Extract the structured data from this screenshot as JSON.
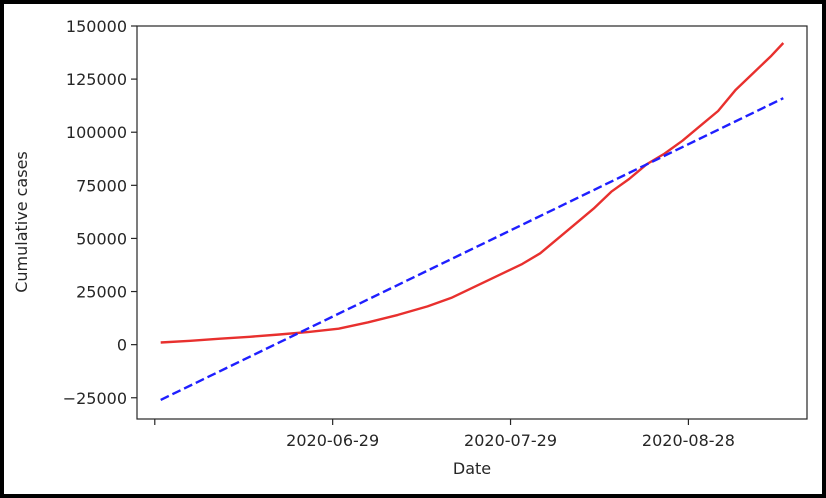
{
  "chart_data": {
    "type": "line",
    "title": "",
    "xlabel": "Date",
    "ylabel": "Cumulative cases",
    "xlim": [
      "2020-05-27",
      "2020-09-17"
    ],
    "ylim": [
      -35000,
      150000
    ],
    "grid": false,
    "legend": "none",
    "x_ticks": [
      {
        "value": "2020-05-30",
        "label": ""
      },
      {
        "value": "2020-06-29",
        "label": "2020-06-29"
      },
      {
        "value": "2020-07-29",
        "label": "2020-07-29"
      },
      {
        "value": "2020-08-28",
        "label": "2020-08-28"
      }
    ],
    "y_ticks": [
      {
        "value": -25000,
        "label": "−25000"
      },
      {
        "value": 0,
        "label": "0"
      },
      {
        "value": 25000,
        "label": "25000"
      },
      {
        "value": 50000,
        "label": "50000"
      },
      {
        "value": 75000,
        "label": "75000"
      },
      {
        "value": 100000,
        "label": "100000"
      },
      {
        "value": 125000,
        "label": "125000"
      },
      {
        "value": 150000,
        "label": "150000"
      }
    ],
    "series": [
      {
        "style": "solid",
        "color": "#e8302e",
        "x": [
          "2020-05-31",
          "2020-06-05",
          "2020-06-10",
          "2020-06-15",
          "2020-06-20",
          "2020-06-25",
          "2020-06-30",
          "2020-07-05",
          "2020-07-10",
          "2020-07-15",
          "2020-07-19",
          "2020-07-22",
          "2020-07-25",
          "2020-07-28",
          "2020-07-31",
          "2020-08-03",
          "2020-08-06",
          "2020-08-09",
          "2020-08-12",
          "2020-08-15",
          "2020-08-18",
          "2020-08-21",
          "2020-08-24",
          "2020-08-27",
          "2020-08-30",
          "2020-09-02",
          "2020-09-05",
          "2020-09-08",
          "2020-09-11",
          "2020-09-13"
        ],
        "y": [
          1000,
          1800,
          2800,
          3700,
          4800,
          6000,
          7500,
          10500,
          14000,
          18000,
          22000,
          26000,
          30000,
          34000,
          38000,
          43000,
          50000,
          57000,
          64000,
          72000,
          78000,
          85000,
          90000,
          96000,
          103000,
          110000,
          120000,
          128000,
          136000,
          142000
        ]
      },
      {
        "style": "dashed",
        "color": "#1f1fff",
        "x": [
          "2020-05-31",
          "2020-09-13"
        ],
        "y": [
          -26000,
          116000
        ]
      }
    ]
  }
}
